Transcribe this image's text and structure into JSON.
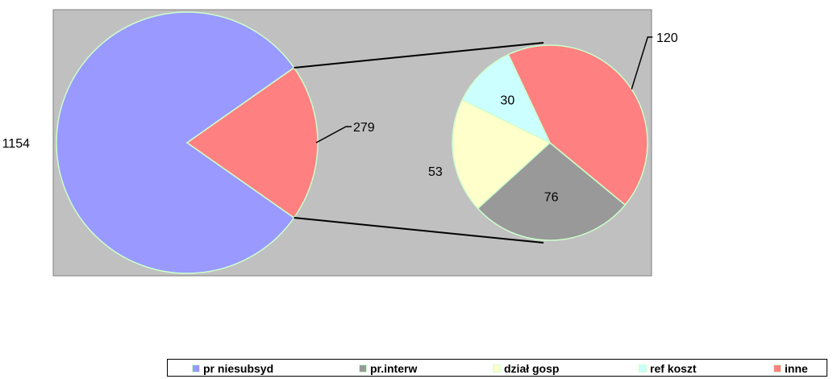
{
  "chart_data": {
    "type": "pie",
    "subtype": "pie-of-pie",
    "title": "",
    "plot_background": "#c0c0c0",
    "slice_border": "#ccffcc",
    "series": [
      {
        "name": "pr niesubsyd",
        "value": 1154,
        "color": "#9999ff",
        "in_secondary": false
      },
      {
        "name": "pr.interw",
        "value": 76,
        "color": "#999999",
        "in_secondary": true
      },
      {
        "name": "dział gosp",
        "value": 53,
        "color": "#ffffcc",
        "in_secondary": true
      },
      {
        "name": "ref koszt",
        "value": 30,
        "color": "#ccffff",
        "in_secondary": true
      },
      {
        "name": "inne",
        "value": 120,
        "color": "#ff8080",
        "in_secondary": true
      }
    ],
    "primary_other_value": 279,
    "primary_other_color": "#ff8080",
    "legend_position": "bottom"
  }
}
